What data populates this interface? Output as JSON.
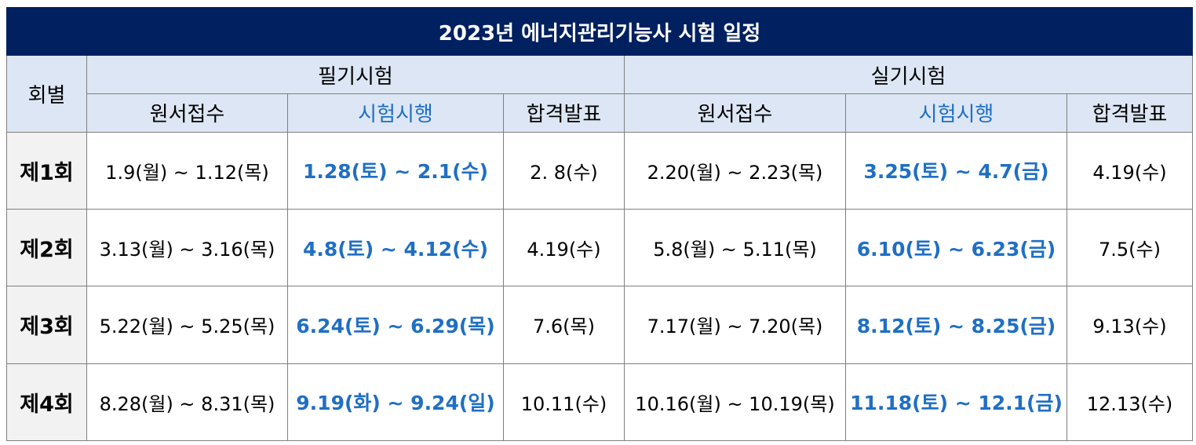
{
  "title": "2023년 에너지관리기능사 시험 일정",
  "headers": {
    "round": "회별",
    "written_group": "필기시험",
    "practical_group": "실기시험",
    "written_cols": [
      "원서접수",
      "시험시행",
      "합격발표"
    ],
    "practical_cols": [
      "원서접수",
      "시험시행",
      "합격발표"
    ]
  },
  "rows": [
    {
      "round": "제1회",
      "w_apply": "1.9(월) ~ 1.12(목)",
      "w_exam": "1.28(토) ~ 2.1(수)",
      "w_result": "2. 8(수)",
      "p_apply": "2.20(월) ~ 2.23(목)",
      "p_exam": "3.25(토) ~ 4.7(금)",
      "p_result": "4.19(수)"
    },
    {
      "round": "제2회",
      "w_apply": "3.13(월) ~ 3.16(목)",
      "w_exam": "4.8(토) ~ 4.12(수)",
      "w_result": "4.19(수)",
      "p_apply": "5.8(월) ~ 5.11(목)",
      "p_exam": "6.10(토) ~ 6.23(금)",
      "p_result": "7.5(수)"
    },
    {
      "round": "제3회",
      "w_apply": "5.22(월) ~ 5.25(목)",
      "w_exam": "6.24(토) ~ 6.29(목)",
      "w_result": "7.6(목)",
      "p_apply": "7.17(월) ~ 7.20(목)",
      "p_exam": "8.12(토) ~ 8.25(금)",
      "p_result": "9.13(수)"
    },
    {
      "round": "제4회",
      "w_apply": "8.28(월) ~ 8.31(목)",
      "w_exam": "9.19(화) ~ 9.24(일)",
      "w_result": "10.11(수)",
      "p_apply": "10.16(월) ~ 10.19(목)",
      "p_exam": "11.18(토) ~ 12.1(금)",
      "p_result": "12.13(수)"
    }
  ],
  "colors": {
    "title_bg": "#002060",
    "header_bg": "#dce6f4",
    "round_bg": "#f2f2f2",
    "exam_text": "#1f6fc4"
  }
}
